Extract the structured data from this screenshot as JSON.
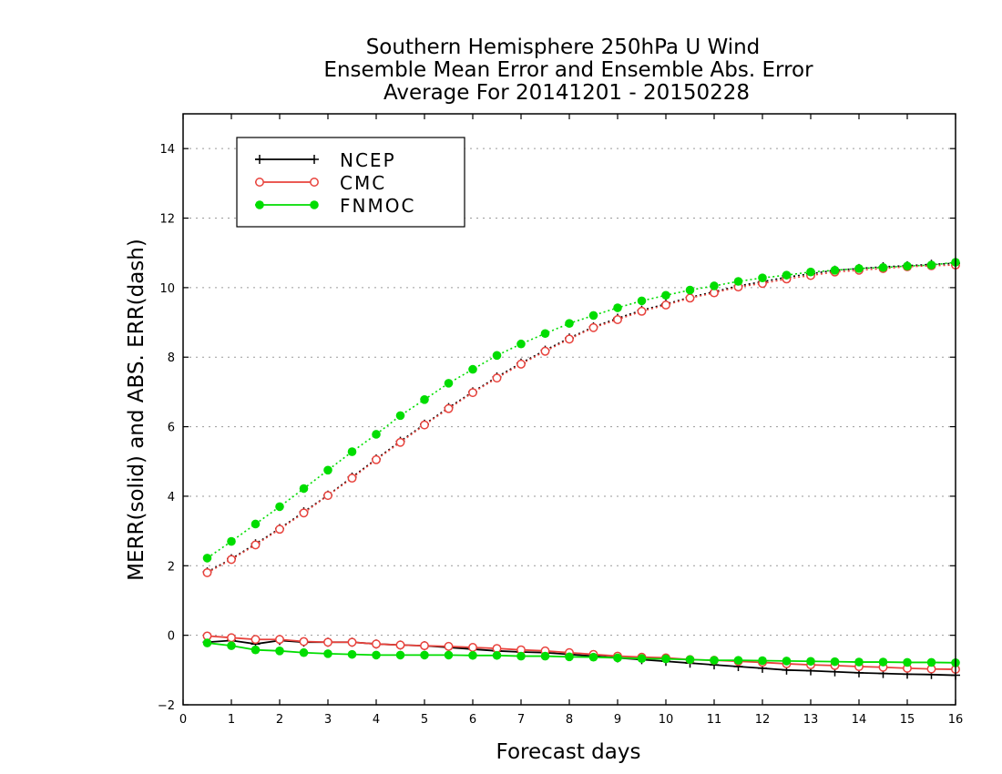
{
  "chart_data": {
    "type": "line",
    "title": [
      "Southern Hemisphere 250hPa U Wind",
      "Ensemble Mean Error and Ensemble Abs. Error",
      "Average For 20141201 - 20150228"
    ],
    "xlabel": "Forecast days",
    "ylabel": "MERR(solid) and ABS. ERR(dash)",
    "xlim": [
      0,
      16
    ],
    "ylim": [
      -2,
      15
    ],
    "xticks": [
      0,
      1,
      2,
      3,
      4,
      5,
      6,
      7,
      8,
      9,
      10,
      11,
      12,
      13,
      14,
      15,
      16
    ],
    "yticks": [
      -2,
      0,
      2,
      4,
      6,
      8,
      10,
      12,
      14
    ],
    "grid": "dotted horizontal",
    "legend_position": "top-left",
    "x": [
      0.5,
      1,
      1.5,
      2,
      2.5,
      3,
      3.5,
      4,
      4.5,
      5,
      5.5,
      6,
      6.5,
      7,
      7.5,
      8,
      8.5,
      9,
      9.5,
      10,
      10.5,
      11,
      11.5,
      12,
      12.5,
      13,
      13.5,
      14,
      14.5,
      15,
      15.5,
      16
    ],
    "series": [
      {
        "name": "NCEP",
        "line_style": "solid",
        "marker": "plus",
        "color": "#000000",
        "values": [
          -0.2,
          -0.15,
          -0.25,
          -0.15,
          -0.2,
          -0.2,
          -0.2,
          -0.25,
          -0.28,
          -0.3,
          -0.35,
          -0.4,
          -0.45,
          -0.48,
          -0.5,
          -0.55,
          -0.6,
          -0.65,
          -0.7,
          -0.75,
          -0.8,
          -0.85,
          -0.9,
          -0.95,
          -1.0,
          -1.02,
          -1.05,
          -1.08,
          -1.1,
          -1.12,
          -1.13,
          -1.15
        ]
      },
      {
        "name": "CMC",
        "line_style": "solid",
        "marker": "open-circle",
        "color": "#e8423c",
        "values": [
          -0.02,
          -0.07,
          -0.12,
          -0.12,
          -0.18,
          -0.2,
          -0.2,
          -0.25,
          -0.28,
          -0.3,
          -0.32,
          -0.35,
          -0.38,
          -0.42,
          -0.45,
          -0.5,
          -0.55,
          -0.6,
          -0.63,
          -0.65,
          -0.7,
          -0.72,
          -0.75,
          -0.78,
          -0.82,
          -0.85,
          -0.87,
          -0.9,
          -0.92,
          -0.95,
          -0.97,
          -0.98
        ]
      },
      {
        "name": "FNMOC",
        "line_style": "solid",
        "marker": "filled-circle",
        "color": "#00dd00",
        "values": [
          -0.22,
          -0.3,
          -0.42,
          -0.45,
          -0.5,
          -0.53,
          -0.55,
          -0.57,
          -0.57,
          -0.57,
          -0.57,
          -0.58,
          -0.58,
          -0.6,
          -0.6,
          -0.62,
          -0.63,
          -0.65,
          -0.67,
          -0.68,
          -0.7,
          -0.72,
          -0.72,
          -0.73,
          -0.74,
          -0.75,
          -0.76,
          -0.77,
          -0.77,
          -0.78,
          -0.78,
          -0.79
        ]
      },
      {
        "name": "",
        "line_style": "dotted",
        "marker": "plus",
        "color": "#000000",
        "values": [
          1.82,
          2.2,
          2.63,
          3.07,
          3.55,
          4.03,
          4.55,
          5.07,
          5.58,
          6.07,
          6.55,
          7.0,
          7.43,
          7.83,
          8.2,
          8.55,
          8.87,
          9.12,
          9.35,
          9.53,
          9.72,
          9.88,
          10.05,
          10.17,
          10.3,
          10.4,
          10.5,
          10.55,
          10.6,
          10.63,
          10.67,
          10.7
        ]
      },
      {
        "name": "",
        "line_style": "dotted",
        "marker": "open-circle",
        "color": "#e8423c",
        "values": [
          1.8,
          2.18,
          2.6,
          3.05,
          3.52,
          4.02,
          4.52,
          5.05,
          5.55,
          6.05,
          6.52,
          6.98,
          7.4,
          7.8,
          8.17,
          8.52,
          8.85,
          9.08,
          9.32,
          9.5,
          9.7,
          9.85,
          10.02,
          10.12,
          10.25,
          10.35,
          10.45,
          10.5,
          10.55,
          10.6,
          10.63,
          10.65
        ]
      },
      {
        "name": "",
        "line_style": "dotted",
        "marker": "filled-circle",
        "color": "#00dd00",
        "values": [
          2.22,
          2.7,
          3.2,
          3.7,
          4.22,
          4.75,
          5.28,
          5.78,
          6.32,
          6.78,
          7.25,
          7.65,
          8.05,
          8.38,
          8.68,
          8.97,
          9.2,
          9.42,
          9.62,
          9.78,
          9.93,
          10.05,
          10.18,
          10.28,
          10.36,
          10.45,
          10.5,
          10.55,
          10.58,
          10.62,
          10.65,
          10.73
        ]
      }
    ]
  }
}
